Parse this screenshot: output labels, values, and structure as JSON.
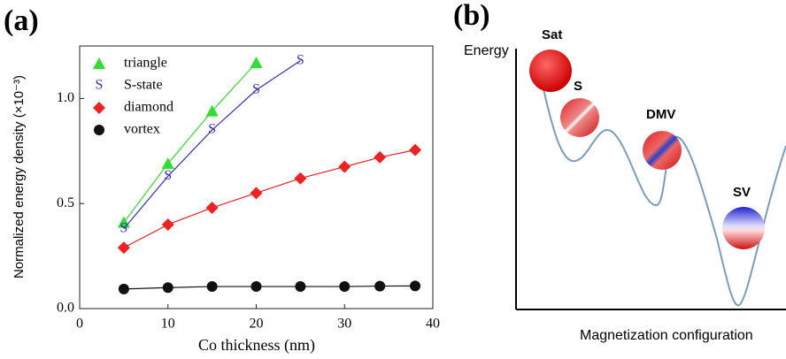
{
  "chart_data": {
    "type": "line",
    "label": "(a)",
    "xlabel": "Co thickness (nm)",
    "ylabel": "Normalized energy density (×10⁻³)",
    "xlim": [
      0,
      40
    ],
    "xticks": [
      0,
      10,
      20,
      30,
      40
    ],
    "ylim": [
      0,
      1.25
    ],
    "yticks": [
      {
        "value": 0,
        "label": "0.0"
      },
      0.5,
      {
        "value": 1,
        "label": "1.0"
      }
    ],
    "legend": "upper left",
    "series": [
      {
        "name": "triangle",
        "color": "#33dd33",
        "marker": "triangle",
        "x": [
          5,
          10,
          15,
          20
        ],
        "values": [
          0.41,
          0.69,
          0.94,
          1.17
        ]
      },
      {
        "name": "S-state",
        "color": "#3333bb",
        "marker": "S",
        "x": [
          5,
          10,
          15,
          20,
          25
        ],
        "values": [
          0.38,
          0.63,
          0.85,
          1.04,
          1.18
        ]
      },
      {
        "name": "diamond",
        "color": "#ee2222",
        "marker": "diamond",
        "x": [
          5,
          10,
          15,
          20,
          25,
          30,
          34,
          38
        ],
        "values": [
          0.29,
          0.4,
          0.48,
          0.55,
          0.62,
          0.675,
          0.72,
          0.755
        ]
      },
      {
        "name": "vortex",
        "color": "#111111",
        "marker": "circle",
        "x": [
          5,
          10,
          15,
          20,
          25,
          30,
          34,
          38
        ],
        "values": [
          0.093,
          0.1,
          0.105,
          0.105,
          0.105,
          0.105,
          0.107,
          0.108
        ]
      }
    ]
  },
  "diagram": {
    "label": "(b)",
    "y_axis": "Energy",
    "x_axis": "Magnetization configuration",
    "states": [
      "Sat",
      "S",
      "DMV",
      "SV"
    ]
  }
}
